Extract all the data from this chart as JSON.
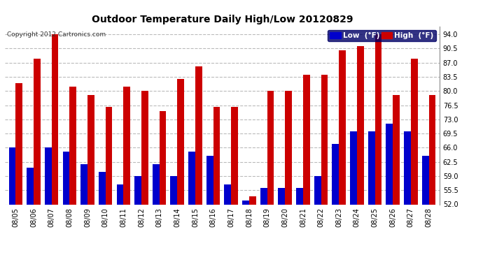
{
  "title": "Outdoor Temperature Daily High/Low 20120829",
  "copyright_text": "Copyright 2012 Cartronics.com",
  "dates": [
    "08/05",
    "08/06",
    "08/07",
    "08/08",
    "08/09",
    "08/10",
    "08/11",
    "08/12",
    "08/13",
    "08/14",
    "08/15",
    "08/16",
    "08/17",
    "08/18",
    "08/19",
    "08/20",
    "08/21",
    "08/22",
    "08/23",
    "08/24",
    "08/25",
    "08/26",
    "08/27",
    "08/28"
  ],
  "highs": [
    82,
    88,
    94,
    81,
    79,
    76,
    81,
    80,
    75,
    83,
    86,
    76,
    76,
    54,
    80,
    80,
    84,
    84,
    90,
    91,
    94,
    79,
    88,
    79
  ],
  "lows": [
    66,
    61,
    66,
    65,
    62,
    60,
    57,
    59,
    62,
    59,
    65,
    64,
    57,
    53,
    56,
    56,
    56,
    59,
    67,
    70,
    70,
    72,
    70,
    64
  ],
  "low_color": "#0000cc",
  "high_color": "#cc0000",
  "background_color": "#ffffff",
  "grid_color": "#bbbbbb",
  "ylim_min": 52,
  "ylim_max": 96,
  "yticks": [
    52.0,
    55.5,
    59.0,
    62.5,
    66.0,
    69.5,
    73.0,
    76.5,
    80.0,
    83.5,
    87.0,
    90.5,
    94.0
  ],
  "legend_low_label": "Low  (°F)",
  "legend_high_label": "High  (°F)",
  "bar_width": 0.38,
  "title_fontsize": 10,
  "tick_fontsize": 7,
  "copyright_fontsize": 6.5
}
